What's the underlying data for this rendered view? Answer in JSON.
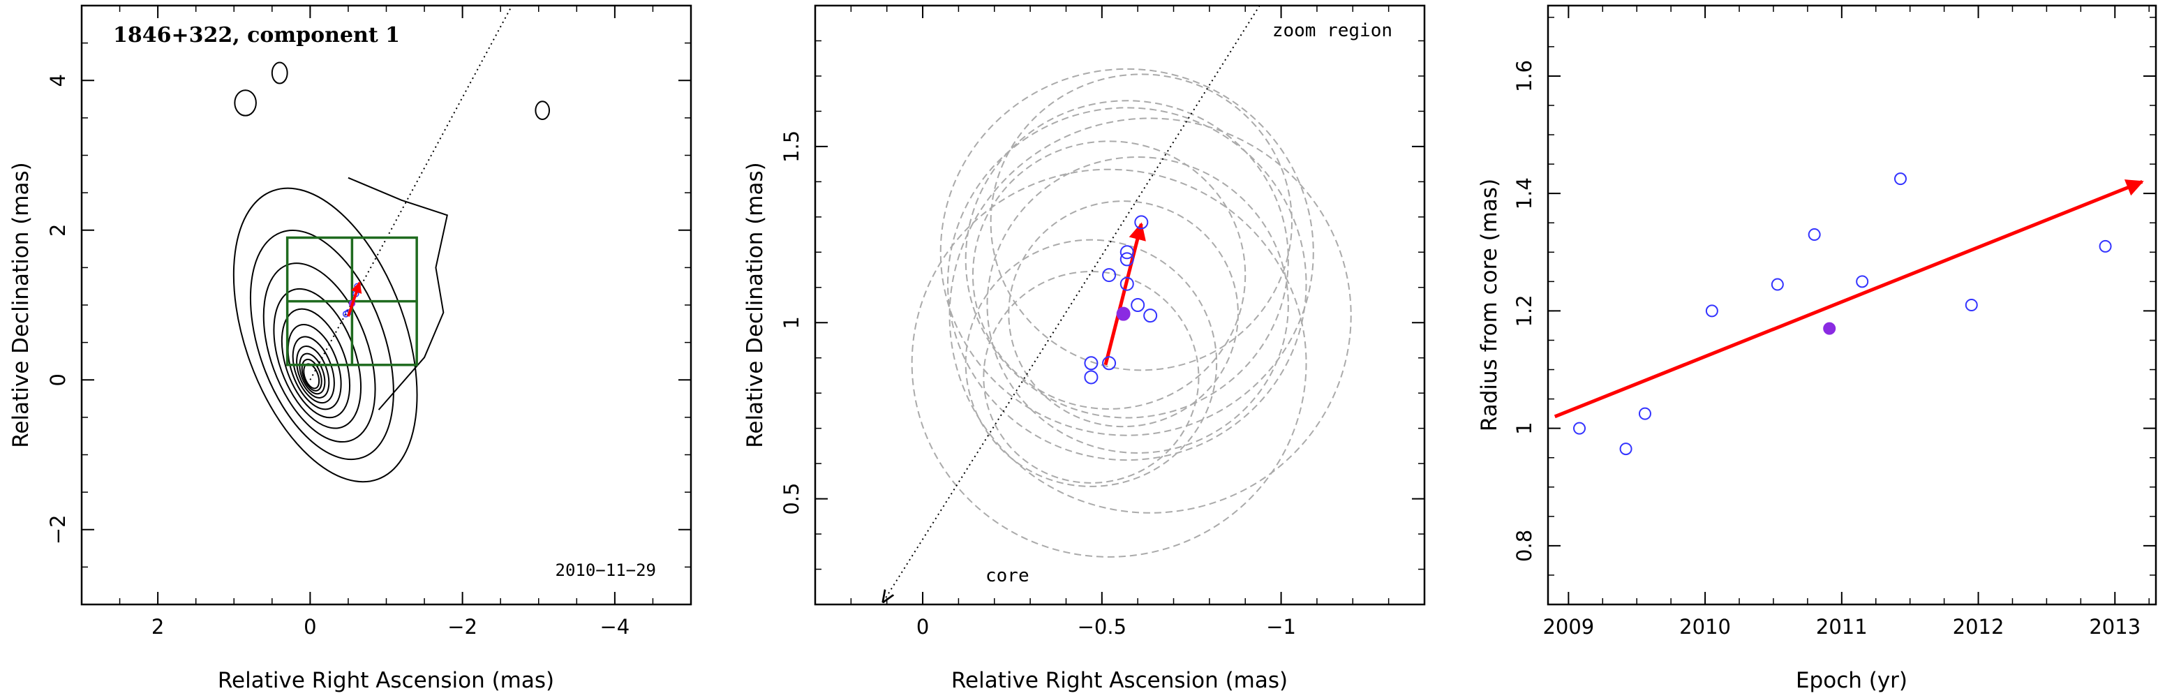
{
  "colors": {
    "axis": "#000000",
    "contour": "#000000",
    "box": "#1f6b1f",
    "arrow": "#ff0000",
    "open_point": "#3333ff",
    "filled_point": "#8a2be2",
    "error_circle": "#aaaaaa"
  },
  "chart_data": [
    {
      "type": "contour",
      "title": "1846+322, component 1",
      "date": "2010−11−29",
      "xlabel": "Relative Right Ascension (mas)",
      "ylabel": "Relative Declination (mas)",
      "xlim": [
        3,
        -5
      ],
      "ylim": [
        -3,
        5
      ],
      "xticks": [
        2,
        0,
        -2,
        -4
      ],
      "xtick_labels": [
        "2",
        "0",
        "−2",
        "−4"
      ],
      "yticks": [
        -2,
        0,
        2,
        4
      ],
      "ytick_labels": [
        "−2",
        "0",
        "2",
        "4"
      ],
      "core": [
        0,
        0
      ],
      "contour_levels": 11,
      "contour_pa_deg": -20,
      "secondary_islands": [
        {
          "x": 0.85,
          "y": 3.7,
          "rx": 0.14,
          "ry": 0.17
        },
        {
          "x": 0.4,
          "y": 4.1,
          "rx": 0.1,
          "ry": 0.14
        },
        {
          "x": -3.05,
          "y": 3.6,
          "rx": 0.09,
          "ry": 0.12
        }
      ],
      "zoom_box": {
        "x": [
          0.3,
          -1.4
        ],
        "y": [
          0.2,
          1.9
        ],
        "divider_x": -0.55,
        "divider_y": 1.05
      },
      "jet_direction_line": {
        "from": [
          0,
          0
        ],
        "to": [
          -2.65,
          5
        ]
      },
      "component_motion_arrow": {
        "from": [
          -0.5,
          0.85
        ],
        "to": [
          -0.65,
          1.3
        ]
      },
      "component_points": [
        {
          "x": -0.47,
          "y": 0.88,
          "filled": false
        },
        {
          "x": -0.5,
          "y": 0.9,
          "filled": false
        },
        {
          "x": -0.55,
          "y": 1.02,
          "filled": true
        },
        {
          "x": -0.6,
          "y": 1.15,
          "filled": false
        },
        {
          "x": -0.62,
          "y": 1.25,
          "filled": false
        }
      ]
    },
    {
      "type": "scatter",
      "title": "",
      "xlabel": "Relative Right Ascension (mas)",
      "ylabel": "Relative Declination (mas)",
      "xlim": [
        0.3,
        -1.4
      ],
      "ylim": [
        0.2,
        1.9
      ],
      "xticks": [
        0,
        -0.5,
        -1
      ],
      "xtick_labels": [
        "0",
        "−0.5",
        "−1"
      ],
      "yticks": [
        0.5,
        1,
        1.5
      ],
      "ytick_labels": [
        "0.5",
        "1",
        "1.5"
      ],
      "annotation_top": "zoom region",
      "annotation_bottom": "core",
      "direction_line": {
        "from": [
          0.11,
          0.2
        ],
        "to": [
          -0.94,
          1.9
        ]
      },
      "motion_arrow": {
        "from": [
          -0.51,
          0.88
        ],
        "to": [
          -0.61,
          1.28
        ]
      },
      "points": [
        {
          "x": -0.47,
          "y": 0.845,
          "filled": false
        },
        {
          "x": -0.47,
          "y": 0.885,
          "filled": false
        },
        {
          "x": -0.52,
          "y": 0.885,
          "filled": false
        },
        {
          "x": -0.52,
          "y": 1.135,
          "filled": false
        },
        {
          "x": -0.56,
          "y": 1.025,
          "filled": true
        },
        {
          "x": -0.57,
          "y": 1.11,
          "filled": false
        },
        {
          "x": -0.57,
          "y": 1.18,
          "filled": false
        },
        {
          "x": -0.57,
          "y": 1.2,
          "filled": false
        },
        {
          "x": -0.6,
          "y": 1.05,
          "filled": false
        },
        {
          "x": -0.61,
          "y": 1.285,
          "filled": false
        },
        {
          "x": -0.635,
          "y": 1.02,
          "filled": false
        }
      ],
      "error_circles": [
        {
          "x": -0.47,
          "y": 0.845,
          "r": 0.3
        },
        {
          "x": -0.47,
          "y": 0.885,
          "r": 0.35
        },
        {
          "x": -0.52,
          "y": 0.885,
          "r": 0.55
        },
        {
          "x": -0.52,
          "y": 1.135,
          "r": 0.38
        },
        {
          "x": -0.56,
          "y": 1.025,
          "r": 0.32
        },
        {
          "x": -0.57,
          "y": 1.11,
          "r": 0.5
        },
        {
          "x": -0.57,
          "y": 1.18,
          "r": 0.45
        },
        {
          "x": -0.57,
          "y": 1.2,
          "r": 0.52
        },
        {
          "x": -0.6,
          "y": 1.05,
          "r": 0.42
        },
        {
          "x": -0.61,
          "y": 1.285,
          "r": 0.42
        },
        {
          "x": -0.635,
          "y": 1.02,
          "r": 0.56
        }
      ]
    },
    {
      "type": "scatter",
      "title": "",
      "xlabel": "Epoch (yr)",
      "ylabel": "Radius from core (mas)",
      "xlim": [
        2008.85,
        2013.3
      ],
      "ylim": [
        0.7,
        1.72
      ],
      "xticks": [
        2009,
        2010,
        2011,
        2012,
        2013
      ],
      "xtick_labels": [
        "2009",
        "2010",
        "2011",
        "2012",
        "2013"
      ],
      "yticks": [
        0.8,
        1,
        1.2,
        1.4,
        1.6
      ],
      "ytick_labels": [
        "0.8",
        "1",
        "1.2",
        "1.4",
        "1.6"
      ],
      "fit_arrow": {
        "from": [
          2008.9,
          1.02
        ],
        "to": [
          2013.2,
          1.42
        ]
      },
      "points": [
        {
          "x": 2009.08,
          "y": 1.0,
          "filled": false
        },
        {
          "x": 2009.42,
          "y": 0.965,
          "filled": false
        },
        {
          "x": 2009.56,
          "y": 1.025,
          "filled": false
        },
        {
          "x": 2010.05,
          "y": 1.2,
          "filled": false
        },
        {
          "x": 2010.53,
          "y": 1.245,
          "filled": false
        },
        {
          "x": 2010.8,
          "y": 1.33,
          "filled": false
        },
        {
          "x": 2010.91,
          "y": 1.17,
          "filled": true
        },
        {
          "x": 2011.15,
          "y": 1.25,
          "filled": false
        },
        {
          "x": 2011.43,
          "y": 1.425,
          "filled": false
        },
        {
          "x": 2011.95,
          "y": 1.21,
          "filled": false
        },
        {
          "x": 2012.93,
          "y": 1.31,
          "filled": false
        }
      ]
    }
  ]
}
